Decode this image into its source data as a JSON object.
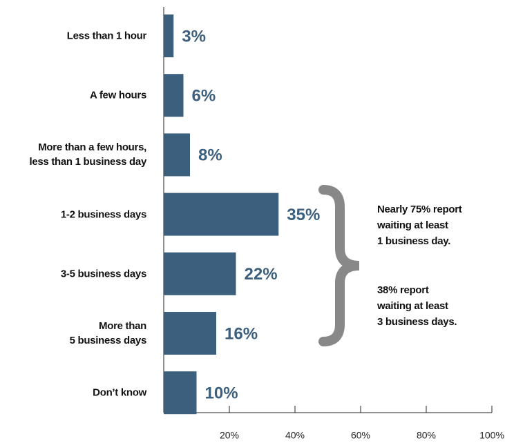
{
  "chart_data": {
    "type": "bar",
    "orientation": "horizontal",
    "categories": [
      "Less than 1 hour",
      "A few hours",
      "More than a few hours,\nless than 1 business day",
      "1-2 business days",
      "3-5 business days",
      "More than\n5 business days",
      "Don’t know"
    ],
    "values": [
      3,
      6,
      8,
      35,
      22,
      16,
      10
    ],
    "value_labels": [
      "3%",
      "6%",
      "8%",
      "35%",
      "22%",
      "16%",
      "10%"
    ],
    "color": "#3b5f7c",
    "xlim": [
      0,
      100
    ],
    "xticks": [
      {
        "value": 20,
        "label": "20%"
      },
      {
        "value": 40,
        "label": "40%"
      },
      {
        "value": 60,
        "label": "60%"
      },
      {
        "value": 80,
        "label": "80%"
      },
      {
        "value": 100,
        "label": "100%"
      }
    ],
    "annotations": [
      "Nearly 75% report\nwaiting at least\n1 business day.",
      "38% report\nwaiting at least\n3 business days."
    ]
  }
}
